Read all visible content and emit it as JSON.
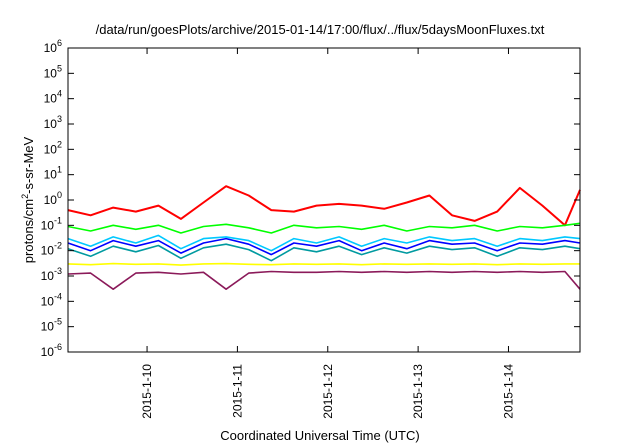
{
  "chart_data": {
    "type": "line",
    "title": "/data/run/goesPlots/archive/2015-01-14/17:00/flux/../flux/5daysMoonFluxes.txt",
    "xlabel": "Coordinated Universal Time (UTC)",
    "ylabel_parts": {
      "pre": "protons/cm",
      "sup": "2",
      "post": "-s-sr-MeV"
    },
    "yscale": "log",
    "ylim": [
      1e-06,
      1000000.0
    ],
    "yticks": [
      1e-06,
      1e-05,
      0.0001,
      0.001,
      0.01,
      0.1,
      1,
      10,
      100,
      1000,
      10000,
      100000,
      1000000
    ],
    "ytick_labels": [
      [
        "10",
        "-6"
      ],
      [
        "10",
        "-5"
      ],
      [
        "10",
        "-4"
      ],
      [
        "10",
        "-3"
      ],
      [
        "10",
        "-2"
      ],
      [
        "10",
        "-1"
      ],
      [
        "10",
        "0"
      ],
      [
        "10",
        "1"
      ],
      [
        "10",
        "2"
      ],
      [
        "10",
        "3"
      ],
      [
        "10",
        "4"
      ],
      [
        "10",
        "5"
      ],
      [
        "10",
        "6"
      ]
    ],
    "xlim": [
      "2015-01-09T03:00",
      "2015-01-14T19:00"
    ],
    "xticks": [
      "2015-01-10",
      "2015-01-11",
      "2015-01-12",
      "2015-01-13",
      "2015-01-14"
    ],
    "xtick_labels": [
      "2015-1-10",
      "2015-1-11",
      "2015-1-12",
      "2015-1-13",
      "2015-1-14"
    ],
    "legend": "none",
    "series": [
      {
        "color": "#ff0000",
        "x": [
          "2015-01-09T03:00",
          "2015-01-09T09:00",
          "2015-01-09T15:00",
          "2015-01-09T21:00",
          "2015-01-10T03:00",
          "2015-01-10T09:00",
          "2015-01-10T15:00",
          "2015-01-10T21:00",
          "2015-01-11T03:00",
          "2015-01-11T09:00",
          "2015-01-11T15:00",
          "2015-01-11T21:00",
          "2015-01-12T03:00",
          "2015-01-12T09:00",
          "2015-01-12T15:00",
          "2015-01-12T21:00",
          "2015-01-13T03:00",
          "2015-01-13T09:00",
          "2015-01-13T15:00",
          "2015-01-13T21:00",
          "2015-01-14T03:00",
          "2015-01-14T09:00",
          "2015-01-14T15:00",
          "2015-01-14T19:00"
        ],
        "y": [
          0.4,
          0.25,
          0.5,
          0.35,
          0.6,
          0.18,
          0.8,
          3.5,
          1.5,
          0.4,
          0.35,
          0.6,
          0.7,
          0.6,
          0.45,
          0.8,
          1.5,
          0.25,
          0.15,
          0.35,
          3.0,
          0.6,
          0.1,
          2.5
        ]
      },
      {
        "color": "#00ff00",
        "x": [
          "2015-01-09T03:00",
          "2015-01-09T09:00",
          "2015-01-09T15:00",
          "2015-01-09T21:00",
          "2015-01-10T03:00",
          "2015-01-10T09:00",
          "2015-01-10T15:00",
          "2015-01-10T21:00",
          "2015-01-11T03:00",
          "2015-01-11T09:00",
          "2015-01-11T15:00",
          "2015-01-11T21:00",
          "2015-01-12T03:00",
          "2015-01-12T09:00",
          "2015-01-12T15:00",
          "2015-01-12T21:00",
          "2015-01-13T03:00",
          "2015-01-13T09:00",
          "2015-01-13T15:00",
          "2015-01-13T21:00",
          "2015-01-14T03:00",
          "2015-01-14T09:00",
          "2015-01-14T15:00",
          "2015-01-14T19:00"
        ],
        "y": [
          0.09,
          0.06,
          0.1,
          0.07,
          0.1,
          0.05,
          0.09,
          0.11,
          0.08,
          0.05,
          0.1,
          0.08,
          0.09,
          0.07,
          0.1,
          0.06,
          0.09,
          0.08,
          0.1,
          0.06,
          0.09,
          0.08,
          0.1,
          0.12
        ]
      },
      {
        "color": "#00c8ff",
        "x": [
          "2015-01-09T03:00",
          "2015-01-09T09:00",
          "2015-01-09T15:00",
          "2015-01-09T21:00",
          "2015-01-10T03:00",
          "2015-01-10T09:00",
          "2015-01-10T15:00",
          "2015-01-10T21:00",
          "2015-01-11T03:00",
          "2015-01-11T09:00",
          "2015-01-11T15:00",
          "2015-01-11T21:00",
          "2015-01-12T03:00",
          "2015-01-12T09:00",
          "2015-01-12T15:00",
          "2015-01-12T21:00",
          "2015-01-13T03:00",
          "2015-01-13T09:00",
          "2015-01-13T15:00",
          "2015-01-13T21:00",
          "2015-01-14T03:00",
          "2015-01-14T09:00",
          "2015-01-14T15:00",
          "2015-01-14T19:00"
        ],
        "y": [
          0.03,
          0.015,
          0.035,
          0.02,
          0.04,
          0.012,
          0.03,
          0.035,
          0.025,
          0.01,
          0.03,
          0.02,
          0.035,
          0.015,
          0.03,
          0.02,
          0.035,
          0.025,
          0.03,
          0.015,
          0.03,
          0.025,
          0.035,
          0.03
        ]
      },
      {
        "color": "#0000ff",
        "x": [
          "2015-01-09T03:00",
          "2015-01-09T09:00",
          "2015-01-09T15:00",
          "2015-01-09T21:00",
          "2015-01-10T03:00",
          "2015-01-10T09:00",
          "2015-01-10T15:00",
          "2015-01-10T21:00",
          "2015-01-11T03:00",
          "2015-01-11T09:00",
          "2015-01-11T15:00",
          "2015-01-11T21:00",
          "2015-01-12T03:00",
          "2015-01-12T09:00",
          "2015-01-12T15:00",
          "2015-01-12T21:00",
          "2015-01-13T03:00",
          "2015-01-13T09:00",
          "2015-01-13T15:00",
          "2015-01-13T21:00",
          "2015-01-14T03:00",
          "2015-01-14T09:00",
          "2015-01-14T15:00",
          "2015-01-14T19:00"
        ],
        "y": [
          0.02,
          0.01,
          0.025,
          0.015,
          0.025,
          0.008,
          0.02,
          0.03,
          0.018,
          0.007,
          0.02,
          0.015,
          0.025,
          0.01,
          0.02,
          0.012,
          0.025,
          0.018,
          0.02,
          0.01,
          0.02,
          0.018,
          0.025,
          0.02
        ]
      },
      {
        "color": "#009aa0",
        "x": [
          "2015-01-09T03:00",
          "2015-01-09T09:00",
          "2015-01-09T15:00",
          "2015-01-09T21:00",
          "2015-01-10T03:00",
          "2015-01-10T09:00",
          "2015-01-10T15:00",
          "2015-01-10T21:00",
          "2015-01-11T03:00",
          "2015-01-11T09:00",
          "2015-01-11T15:00",
          "2015-01-11T21:00",
          "2015-01-12T03:00",
          "2015-01-12T09:00",
          "2015-01-12T15:00",
          "2015-01-12T21:00",
          "2015-01-13T03:00",
          "2015-01-13T09:00",
          "2015-01-13T15:00",
          "2015-01-13T21:00",
          "2015-01-14T03:00",
          "2015-01-14T09:00",
          "2015-01-14T15:00",
          "2015-01-14T19:00"
        ],
        "y": [
          0.012,
          0.006,
          0.015,
          0.009,
          0.016,
          0.005,
          0.013,
          0.018,
          0.011,
          0.004,
          0.013,
          0.009,
          0.015,
          0.007,
          0.013,
          0.008,
          0.015,
          0.011,
          0.013,
          0.006,
          0.013,
          0.011,
          0.015,
          0.012
        ]
      },
      {
        "color": "#ffff00",
        "x": [
          "2015-01-09T03:00",
          "2015-01-09T09:00",
          "2015-01-09T15:00",
          "2015-01-09T21:00",
          "2015-01-10T03:00",
          "2015-01-10T09:00",
          "2015-01-10T15:00",
          "2015-01-10T21:00",
          "2015-01-11T03:00",
          "2015-01-11T09:00",
          "2015-01-11T15:00",
          "2015-01-11T21:00",
          "2015-01-12T03:00",
          "2015-01-12T09:00",
          "2015-01-12T15:00",
          "2015-01-12T21:00",
          "2015-01-13T03:00",
          "2015-01-13T09:00",
          "2015-01-13T15:00",
          "2015-01-13T21:00",
          "2015-01-14T03:00",
          "2015-01-14T09:00",
          "2015-01-14T15:00",
          "2015-01-14T19:00"
        ],
        "y": [
          0.003,
          0.0028,
          0.0031,
          0.0029,
          0.003,
          0.0027,
          0.003,
          0.0031,
          0.0029,
          0.0028,
          0.003,
          0.0029,
          0.003,
          0.0028,
          0.003,
          0.0029,
          0.003,
          0.0029,
          0.003,
          0.0028,
          0.003,
          0.0029,
          0.003,
          0.003
        ]
      },
      {
        "color": "#8b1a5a",
        "x": [
          "2015-01-09T03:00",
          "2015-01-09T09:00",
          "2015-01-09T15:00",
          "2015-01-09T21:00",
          "2015-01-10T03:00",
          "2015-01-10T09:00",
          "2015-01-10T15:00",
          "2015-01-10T21:00",
          "2015-01-11T03:00",
          "2015-01-11T09:00",
          "2015-01-11T15:00",
          "2015-01-11T21:00",
          "2015-01-12T03:00",
          "2015-01-12T09:00",
          "2015-01-12T15:00",
          "2015-01-12T21:00",
          "2015-01-13T03:00",
          "2015-01-13T09:00",
          "2015-01-13T15:00",
          "2015-01-13T21:00",
          "2015-01-14T03:00",
          "2015-01-14T09:00",
          "2015-01-14T15:00",
          "2015-01-14T19:00"
        ],
        "y": [
          0.0012,
          0.0013,
          0.0003,
          0.0013,
          0.0014,
          0.0012,
          0.0014,
          0.0003,
          0.0013,
          0.0015,
          0.0014,
          0.0014,
          0.0015,
          0.0014,
          0.0015,
          0.0014,
          0.0015,
          0.0014,
          0.0015,
          0.0014,
          0.0015,
          0.0014,
          0.0015,
          0.0003
        ]
      }
    ]
  }
}
